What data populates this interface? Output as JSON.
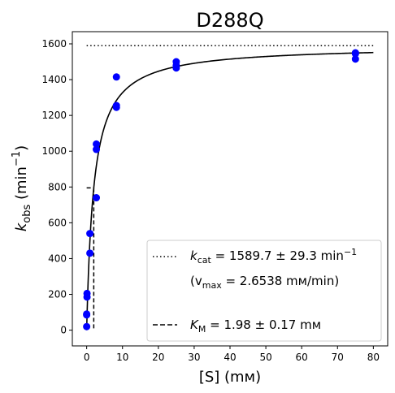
{
  "chart_data": {
    "type": "scatter",
    "title": "D288Q",
    "xlabel": "[S] (mм)",
    "ylabel_main": "k",
    "ylabel_sub": "obs",
    "ylabel_unit_pre": " (min",
    "ylabel_unit_sup": "−1",
    "ylabel_unit_post": ")",
    "xlim": [
      -4,
      84
    ],
    "ylim": [
      -88,
      1668
    ],
    "xticks": [
      0,
      10,
      20,
      30,
      40,
      50,
      60,
      70,
      80
    ],
    "yticks": [
      0,
      200,
      400,
      600,
      800,
      1000,
      1200,
      1400,
      1600
    ],
    "grid": false,
    "legend_position": "lower right",
    "point_color": "#0000ff",
    "points": [
      {
        "x": 0.0,
        "y": 20
      },
      {
        "x": 0.0,
        "y": 85
      },
      {
        "x": 0.0,
        "y": 90
      },
      {
        "x": 0.1,
        "y": 185
      },
      {
        "x": 0.1,
        "y": 205
      },
      {
        "x": 0.9,
        "y": 430
      },
      {
        "x": 0.9,
        "y": 540
      },
      {
        "x": 2.7,
        "y": 740
      },
      {
        "x": 2.7,
        "y": 1010
      },
      {
        "x": 2.7,
        "y": 1040
      },
      {
        "x": 8.3,
        "y": 1245
      },
      {
        "x": 8.3,
        "y": 1255
      },
      {
        "x": 8.3,
        "y": 1415
      },
      {
        "x": 25,
        "y": 1465
      },
      {
        "x": 25,
        "y": 1480
      },
      {
        "x": 25,
        "y": 1500
      },
      {
        "x": 75,
        "y": 1515
      },
      {
        "x": 75,
        "y": 1545
      },
      {
        "x": 75,
        "y": 1550
      }
    ],
    "fit": {
      "kcat": 1589.7,
      "KM": 1.98,
      "x_max": 80
    },
    "legend": {
      "kcat_label": "k",
      "kcat_sub": "cat",
      "kcat_value": " = 1589.7 ± 29.3 min",
      "kcat_sup": "−1",
      "vmax_pre": "(v",
      "vmax_sub": "max",
      "vmax_value": " = 2.6538 mм/min)",
      "km_label": "K",
      "km_sub": "M",
      "km_value": " = 1.98 ± 0.17 mм"
    }
  }
}
